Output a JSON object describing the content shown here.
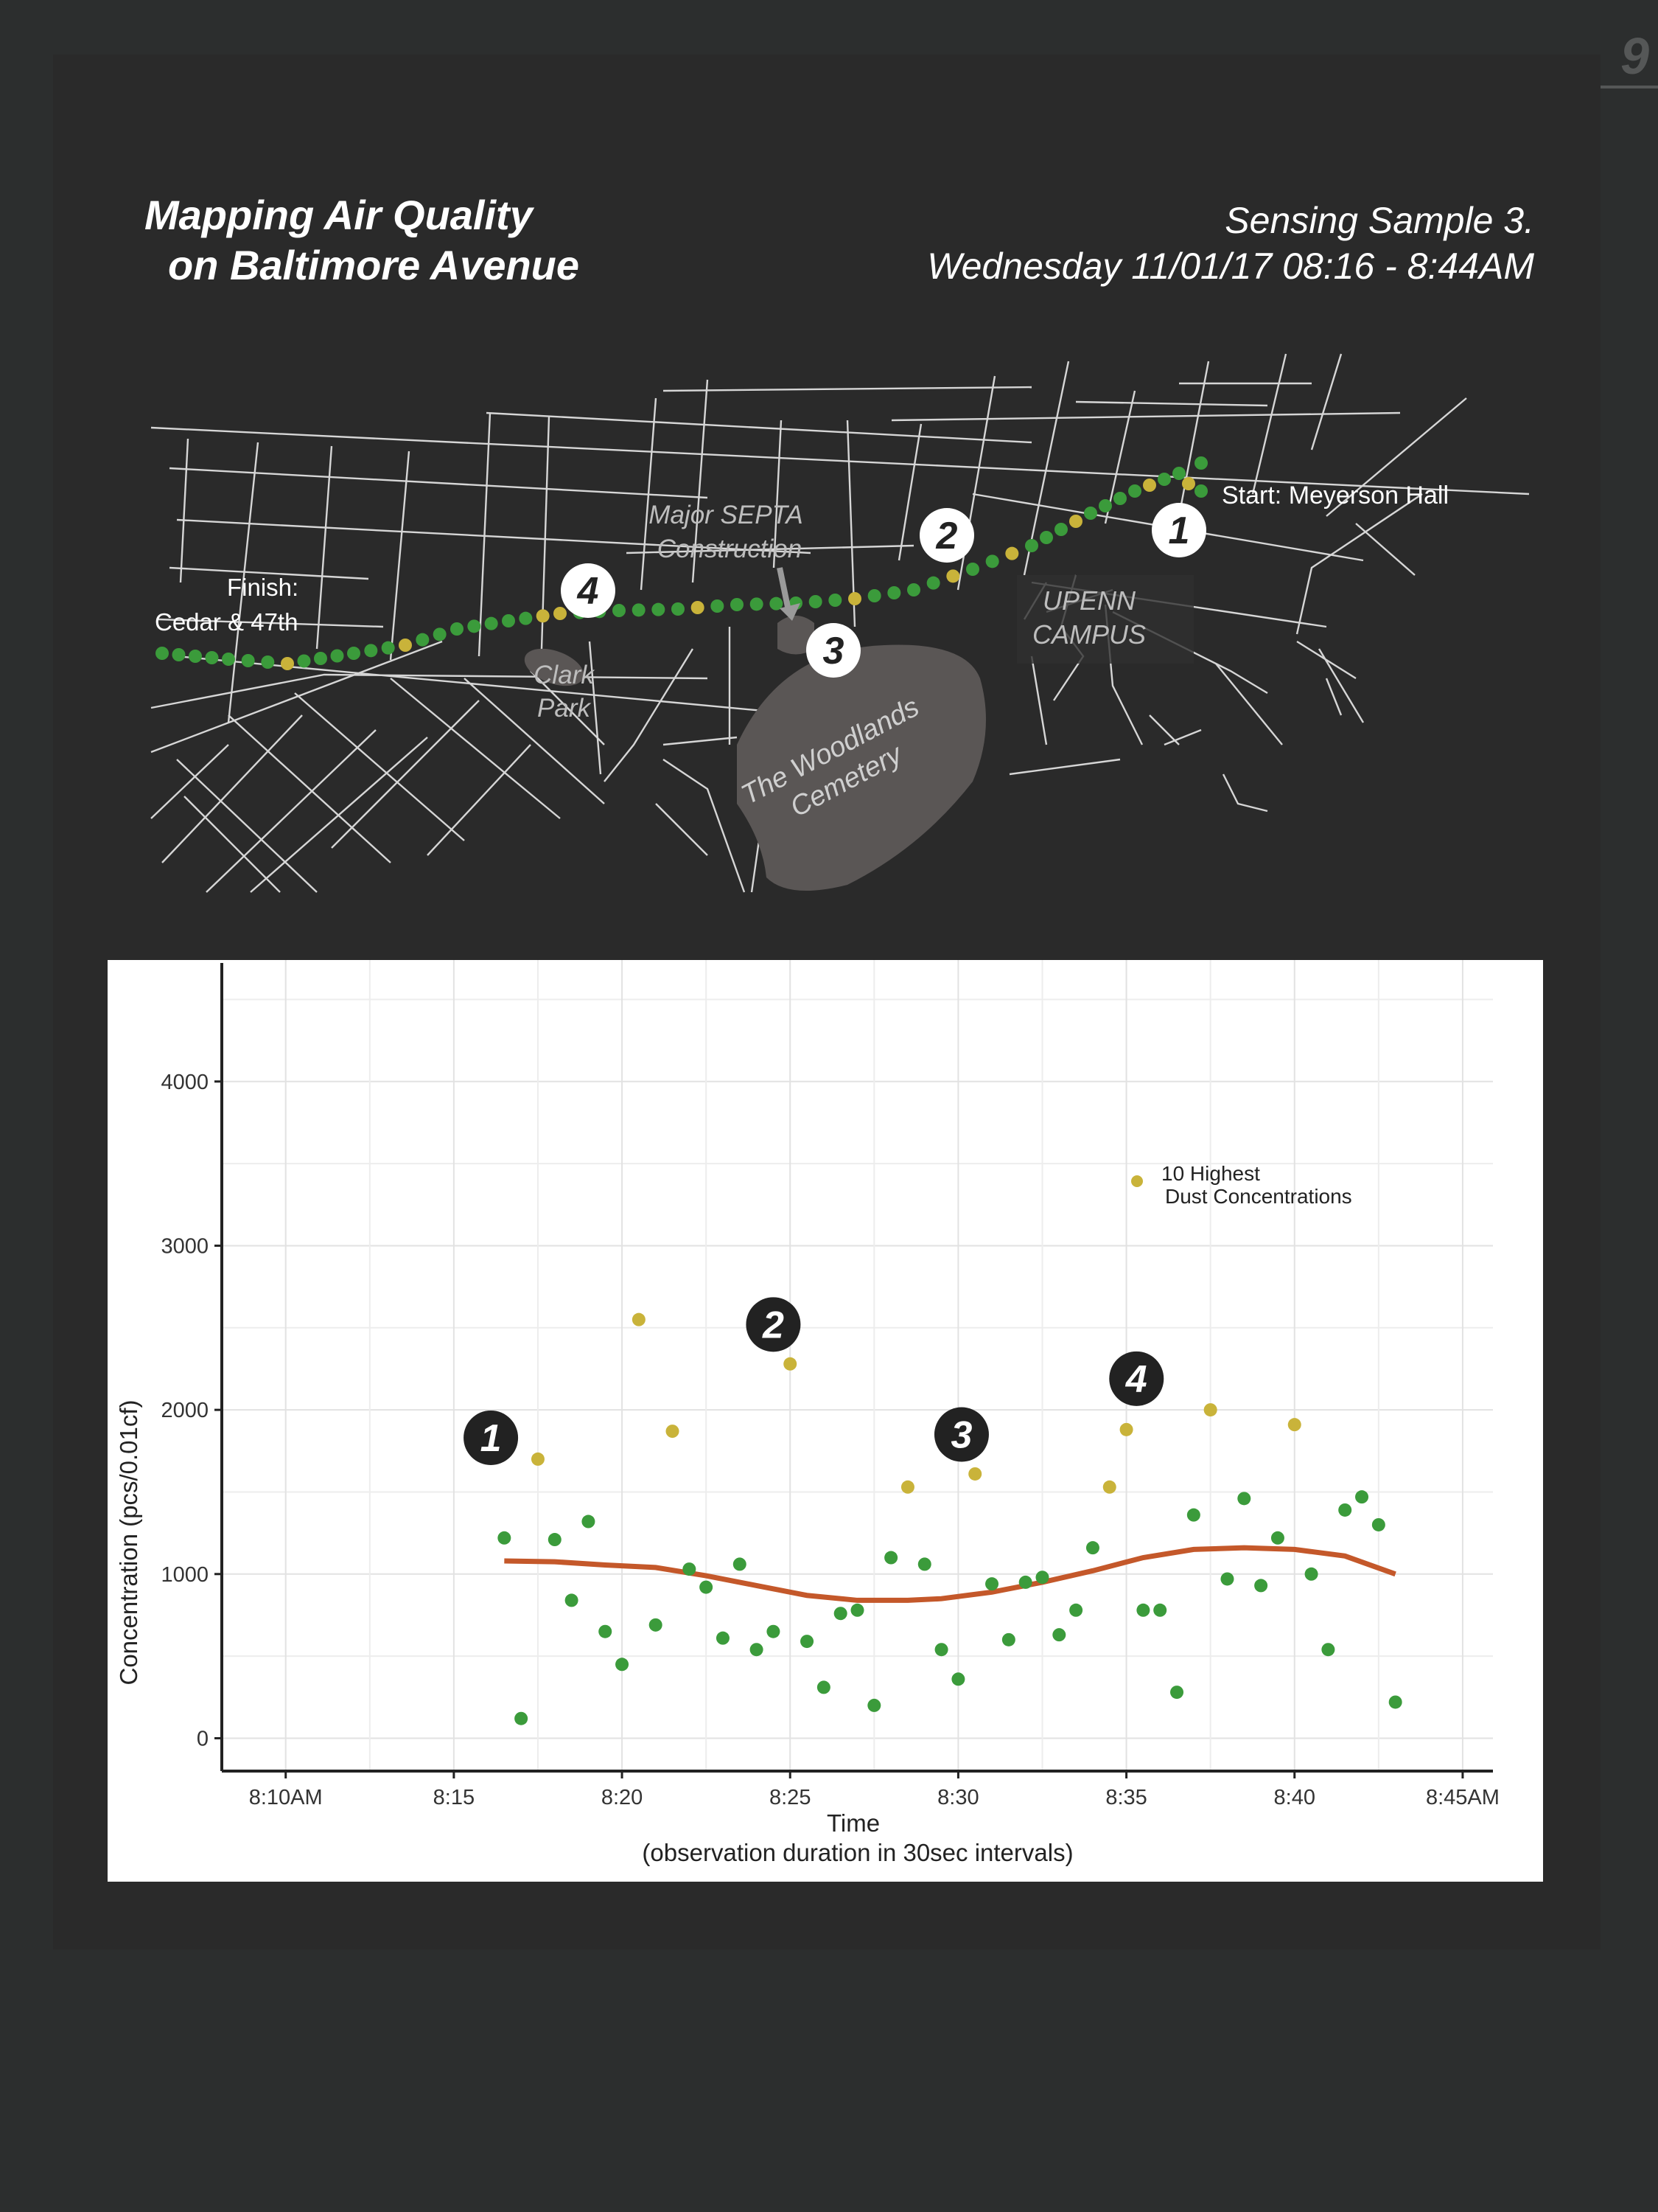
{
  "page_number": "9",
  "title": {
    "line1": "Mapping Air Quality",
    "line2": "on Baltimore Avenue"
  },
  "sample": {
    "line1": "Sensing Sample 3.",
    "line2": "Wednesday 11/01/17 08:16 - 8:44AM"
  },
  "map": {
    "start_label": "Start: Meyerson Hall",
    "finish_label_1": "Finish:",
    "finish_label_2": "Cedar & 47th",
    "construction_1": "Major SEPTA",
    "construction_2": "Construction",
    "campus_1": "UPENN",
    "campus_2": "CAMPUS",
    "park_1": "Clark",
    "park_2": "Park",
    "cemetery_1": "The Woodlands",
    "cemetery_2": "Cemetery",
    "markers": [
      "1",
      "2",
      "3",
      "4"
    ]
  },
  "colors": {
    "normal_point": "#3b9b3b",
    "high_point": "#c9b33a",
    "trend": "#c4582a",
    "background": "#2c2e2e"
  },
  "chart_data": {
    "type": "scatter",
    "xlabel": "Time",
    "xlabel_sub": "(observation duration in 30sec intervals)",
    "ylabel": "Concentration (pcs/0.01cf)",
    "x_ticks": [
      "8:10AM",
      "8:15",
      "8:20",
      "8:25",
      "8:30",
      "8:35",
      "8:40",
      "8:45AM"
    ],
    "x_range_minutes": [
      8.1,
      45.9
    ],
    "y_ticks": [
      "0",
      "1000",
      "2000",
      "3000",
      "4000"
    ],
    "ylim": [
      -200,
      4740
    ],
    "grid": true,
    "legend": {
      "label_1": "10 Highest",
      "label_2": "Dust Concentrations",
      "position": "top-right"
    },
    "annotations": [
      {
        "label": "1",
        "x": 16.1,
        "y": 1830
      },
      {
        "label": "2",
        "x": 24.5,
        "y": 2520
      },
      {
        "label": "3",
        "x": 30.1,
        "y": 1850
      },
      {
        "label": "4",
        "x": 35.3,
        "y": 2190
      }
    ],
    "series": [
      {
        "name": "Dust Concentration",
        "points": [
          {
            "x": 16.5,
            "y": 1220
          },
          {
            "x": 17.0,
            "y": 120
          },
          {
            "x": 17.5,
            "y": 1700
          },
          {
            "x": 18.0,
            "y": 1210
          },
          {
            "x": 18.5,
            "y": 840
          },
          {
            "x": 19.0,
            "y": 1320
          },
          {
            "x": 19.5,
            "y": 650
          },
          {
            "x": 20.0,
            "y": 450
          },
          {
            "x": 20.5,
            "y": 2550
          },
          {
            "x": 21.0,
            "y": 690
          },
          {
            "x": 21.5,
            "y": 1870
          },
          {
            "x": 22.0,
            "y": 1030
          },
          {
            "x": 22.5,
            "y": 920
          },
          {
            "x": 23.0,
            "y": 610
          },
          {
            "x": 23.5,
            "y": 1060
          },
          {
            "x": 24.0,
            "y": 540
          },
          {
            "x": 24.5,
            "y": 650
          },
          {
            "x": 25.0,
            "y": 2280
          },
          {
            "x": 25.5,
            "y": 590
          },
          {
            "x": 26.0,
            "y": 310
          },
          {
            "x": 26.5,
            "y": 760
          },
          {
            "x": 27.0,
            "y": 780
          },
          {
            "x": 27.5,
            "y": 200
          },
          {
            "x": 28.0,
            "y": 1100
          },
          {
            "x": 28.5,
            "y": 1530
          },
          {
            "x": 29.0,
            "y": 1060
          },
          {
            "x": 29.5,
            "y": 540
          },
          {
            "x": 30.0,
            "y": 360
          },
          {
            "x": 30.5,
            "y": 1610
          },
          {
            "x": 31.0,
            "y": 940
          },
          {
            "x": 31.5,
            "y": 600
          },
          {
            "x": 32.0,
            "y": 950
          },
          {
            "x": 32.5,
            "y": 980
          },
          {
            "x": 33.0,
            "y": 630
          },
          {
            "x": 33.5,
            "y": 780
          },
          {
            "x": 34.0,
            "y": 1160
          },
          {
            "x": 34.5,
            "y": 1530
          },
          {
            "x": 35.0,
            "y": 1880
          },
          {
            "x": 35.5,
            "y": 780
          },
          {
            "x": 36.0,
            "y": 780
          },
          {
            "x": 36.5,
            "y": 280
          },
          {
            "x": 37.0,
            "y": 1360
          },
          {
            "x": 37.5,
            "y": 2000
          },
          {
            "x": 38.0,
            "y": 970
          },
          {
            "x": 38.5,
            "y": 1460
          },
          {
            "x": 39.0,
            "y": 930
          },
          {
            "x": 39.5,
            "y": 1220
          },
          {
            "x": 40.0,
            "y": 1910
          },
          {
            "x": 40.5,
            "y": 1000
          },
          {
            "x": 41.0,
            "y": 540
          },
          {
            "x": 41.5,
            "y": 1390
          },
          {
            "x": 42.0,
            "y": 1470
          },
          {
            "x": 42.5,
            "y": 1300
          },
          {
            "x": 43.0,
            "y": 220
          }
        ],
        "highlighted_x": [
          17.5,
          20.5,
          21.5,
          25.0,
          28.5,
          30.5,
          34.5,
          35.0,
          37.5,
          40.0
        ]
      },
      {
        "name": "Trend",
        "type": "line",
        "points": [
          {
            "x": 16.5,
            "y": 1080
          },
          {
            "x": 18.0,
            "y": 1075
          },
          {
            "x": 19.5,
            "y": 1055
          },
          {
            "x": 21.0,
            "y": 1040
          },
          {
            "x": 22.5,
            "y": 990
          },
          {
            "x": 24.0,
            "y": 930
          },
          {
            "x": 25.5,
            "y": 870
          },
          {
            "x": 27.0,
            "y": 840
          },
          {
            "x": 28.5,
            "y": 840
          },
          {
            "x": 29.5,
            "y": 850
          },
          {
            "x": 31.0,
            "y": 890
          },
          {
            "x": 32.5,
            "y": 950
          },
          {
            "x": 34.0,
            "y": 1020
          },
          {
            "x": 35.5,
            "y": 1100
          },
          {
            "x": 37.0,
            "y": 1150
          },
          {
            "x": 38.5,
            "y": 1160
          },
          {
            "x": 40.0,
            "y": 1150
          },
          {
            "x": 41.5,
            "y": 1110
          },
          {
            "x": 43.0,
            "y": 1000
          }
        ]
      }
    ]
  }
}
